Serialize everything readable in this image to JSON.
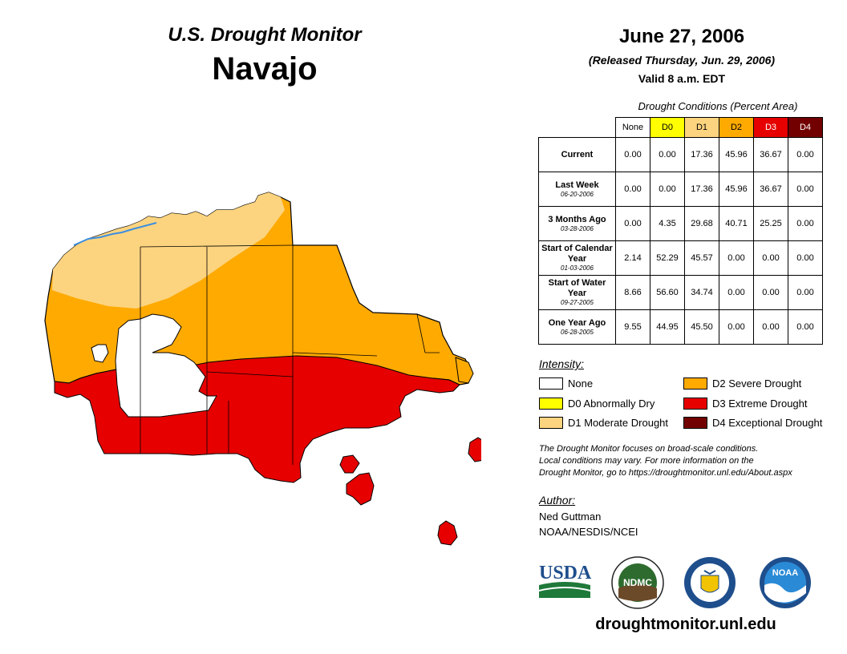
{
  "header": {
    "title": "U.S. Drought Monitor",
    "region": "Navajo",
    "date": "June 27, 2006",
    "released": "(Released Thursday, Jun. 29, 2006)",
    "valid": "Valid 8 a.m. EDT"
  },
  "table": {
    "caption": "Drought Conditions (Percent Area)",
    "columns": [
      "None",
      "D0",
      "D1",
      "D2",
      "D3",
      "D4"
    ],
    "column_colors": [
      "#ffffff",
      "#ffff00",
      "#fcd37f",
      "#ffaa00",
      "#e60000",
      "#730000"
    ],
    "rows": [
      {
        "label": "Current",
        "sublabel": "",
        "values": [
          "0.00",
          "0.00",
          "17.36",
          "45.96",
          "36.67",
          "0.00"
        ]
      },
      {
        "label": "Last Week",
        "sublabel": "06-20-2006",
        "values": [
          "0.00",
          "0.00",
          "17.36",
          "45.96",
          "36.67",
          "0.00"
        ]
      },
      {
        "label": "3 Months Ago",
        "sublabel": "03-28-2006",
        "values": [
          "0.00",
          "4.35",
          "29.68",
          "40.71",
          "25.25",
          "0.00"
        ]
      },
      {
        "label": "Start of Calendar Year",
        "sublabel": "01-03-2006",
        "values": [
          "2.14",
          "52.29",
          "45.57",
          "0.00",
          "0.00",
          "0.00"
        ]
      },
      {
        "label": "Start of Water Year",
        "sublabel": "09-27-2005",
        "values": [
          "8.66",
          "56.60",
          "34.74",
          "0.00",
          "0.00",
          "0.00"
        ]
      },
      {
        "label": "One Year Ago",
        "sublabel": "06-28-2005",
        "values": [
          "9.55",
          "44.95",
          "45.50",
          "0.00",
          "0.00",
          "0.00"
        ]
      }
    ]
  },
  "legend": {
    "title": "Intensity:",
    "items": [
      {
        "label": "None",
        "color": "#ffffff"
      },
      {
        "label": "D0 Abnormally Dry",
        "color": "#ffff00"
      },
      {
        "label": "D1 Moderate Drought",
        "color": "#fcd37f"
      },
      {
        "label": "D2 Severe Drought",
        "color": "#ffaa00"
      },
      {
        "label": "D3 Extreme Drought",
        "color": "#e60000"
      },
      {
        "label": "D4 Exceptional Drought",
        "color": "#730000"
      }
    ]
  },
  "note": {
    "line1": "The Drought Monitor focuses on broad-scale conditions.",
    "line2": "Local conditions may vary. For more information on the",
    "line3": "Drought Monitor, go to https://droughtmonitor.unl.edu/About.aspx"
  },
  "author": {
    "title": "Author:",
    "name": "Ned Guttman",
    "org": "NOAA/NESDIS/NCEI"
  },
  "logos": {
    "usda": "USDA",
    "ndmc": "NDMC",
    "noaa": "NOAA"
  },
  "footer": {
    "url": "droughtmonitor.unl.edu"
  },
  "colors": {
    "none": "#ffffff",
    "d1": "#fcd37f",
    "d2": "#ffaa00",
    "d3": "#e60000",
    "river": "#3c8fe0"
  }
}
